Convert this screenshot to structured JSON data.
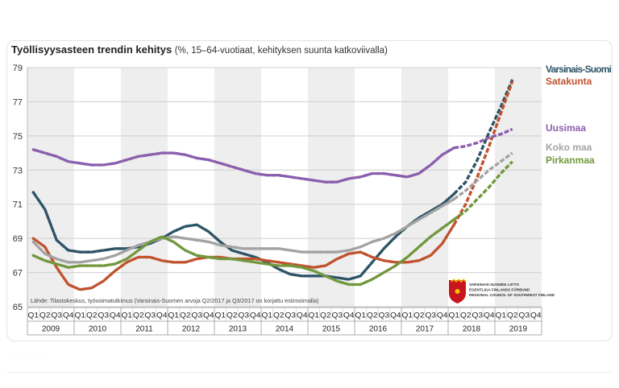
{
  "chart_data": {
    "type": "line",
    "title": "Työllisyysasteen trendin kehitys",
    "subtitle": "(%, 15–64-vuotiaat, kehityksen suunta katkoviivalla)",
    "xlabel": "",
    "ylabel": "",
    "ylim": [
      65,
      79
    ],
    "yticks": [
      65,
      67,
      69,
      71,
      73,
      75,
      77,
      79
    ],
    "grid": true,
    "quarter_labels": [
      "Q1",
      "Q2",
      "Q3",
      "Q4"
    ],
    "years": [
      "2009",
      "2010",
      "2011",
      "2012",
      "2013",
      "2014",
      "2015",
      "2016",
      "2017",
      "2018",
      "2019"
    ],
    "source_note": "Lähde: Tilastokeskus, työvoimatutkimus (Varsinais-Suomen arvoja Q2/2017 ja Q3/2017 on korjattu estimoimalla)",
    "logo_text": [
      "VARSINAIS-SUOMEN LIITTO",
      "EGENTLIGA FINLANDS FÖRBUND",
      "REGIONAL COUNCIL OF SOUTHWEST FINLAND"
    ],
    "trend_start_index": 36,
    "series": [
      {
        "name": "Varsinais-Suomi",
        "color": "#2e5467",
        "values": [
          71.7,
          70.7,
          68.9,
          68.3,
          68.2,
          68.2,
          68.3,
          68.4,
          68.4,
          68.5,
          68.7,
          69.0,
          69.4,
          69.7,
          69.8,
          69.4,
          68.8,
          68.3,
          68.1,
          67.9,
          67.6,
          67.2,
          66.9,
          66.8,
          66.8,
          66.8,
          66.7,
          66.6,
          66.8,
          67.6,
          68.4,
          69.1,
          69.7,
          70.2,
          70.6,
          71.0,
          71.6,
          72.3,
          73.6,
          75.2,
          76.7,
          78.3
        ]
      },
      {
        "name": "Satakunta",
        "color": "#c0532e",
        "values": [
          69.0,
          68.5,
          67.3,
          66.3,
          66.0,
          66.1,
          66.5,
          67.1,
          67.6,
          67.9,
          67.9,
          67.7,
          67.6,
          67.6,
          67.8,
          67.9,
          67.9,
          67.8,
          67.8,
          67.8,
          67.7,
          67.6,
          67.5,
          67.4,
          67.3,
          67.4,
          67.8,
          68.1,
          68.2,
          67.9,
          67.7,
          67.6,
          67.6,
          67.7,
          68.0,
          68.7,
          69.8,
          71.0,
          72.6,
          74.4,
          76.3,
          78.2
        ]
      },
      {
        "name": "Uusimaa",
        "color": "#8b5fad",
        "values": [
          74.2,
          74.0,
          73.8,
          73.5,
          73.4,
          73.3,
          73.3,
          73.4,
          73.6,
          73.8,
          73.9,
          74.0,
          74.0,
          73.9,
          73.7,
          73.6,
          73.4,
          73.2,
          73.0,
          72.8,
          72.7,
          72.7,
          72.6,
          72.5,
          72.4,
          72.3,
          72.3,
          72.5,
          72.6,
          72.8,
          72.8,
          72.7,
          72.6,
          72.8,
          73.3,
          73.9,
          74.3,
          74.4,
          74.6,
          74.9,
          75.1,
          75.4
        ]
      },
      {
        "name": "Koko maa",
        "color": "#a3a3a3",
        "values": [
          68.8,
          68.1,
          67.8,
          67.6,
          67.6,
          67.7,
          67.8,
          68.0,
          68.3,
          68.6,
          68.8,
          69.0,
          69.1,
          69.0,
          68.9,
          68.8,
          68.6,
          68.5,
          68.4,
          68.4,
          68.4,
          68.4,
          68.3,
          68.2,
          68.2,
          68.2,
          68.2,
          68.3,
          68.5,
          68.8,
          69.0,
          69.3,
          69.7,
          70.1,
          70.5,
          70.9,
          71.3,
          71.8,
          72.4,
          73.0,
          73.5,
          74.0
        ]
      },
      {
        "name": "Pirkanmaa",
        "color": "#72983e",
        "values": [
          68.0,
          67.7,
          67.5,
          67.3,
          67.4,
          67.4,
          67.4,
          67.5,
          67.8,
          68.3,
          68.8,
          69.1,
          68.8,
          68.3,
          68.0,
          67.9,
          67.8,
          67.8,
          67.7,
          67.6,
          67.5,
          67.4,
          67.4,
          67.3,
          67.1,
          66.8,
          66.5,
          66.3,
          66.3,
          66.6,
          67.0,
          67.4,
          67.9,
          68.5,
          69.1,
          69.6,
          70.1,
          70.6,
          71.3,
          72.0,
          72.8,
          73.5
        ]
      }
    ]
  }
}
